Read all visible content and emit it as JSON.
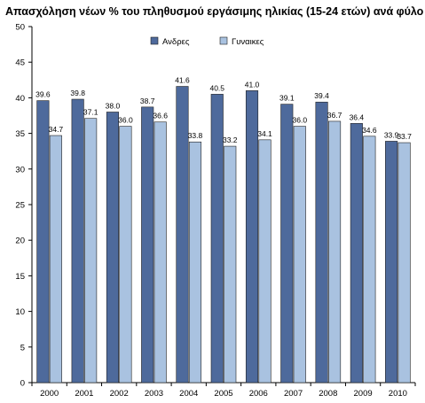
{
  "chart_data": {
    "type": "bar",
    "title": "Απασχόληση νέων % του πληθυσμού εργάσιμης ηλικίας (15-24 ετών) ανά φύλο",
    "categories": [
      "2000",
      "2001",
      "2002",
      "2003",
      "2004",
      "2005",
      "2006",
      "2007",
      "2008",
      "2009",
      "2010"
    ],
    "series": [
      {
        "name": "Ανδρες",
        "color": "#4e6a9c",
        "values": [
          39.6,
          39.8,
          38.0,
          38.7,
          41.6,
          40.5,
          41.0,
          39.1,
          39.4,
          36.4,
          33.9
        ]
      },
      {
        "name": "Γυναικες",
        "color": "#a9c2e0",
        "values": [
          34.7,
          37.1,
          36.0,
          36.6,
          33.8,
          33.2,
          34.1,
          36.0,
          36.7,
          34.6,
          33.7
        ]
      }
    ],
    "ylim": [
      0,
      50
    ],
    "yticks": [
      "0",
      "5",
      "10",
      "15",
      "20",
      "25",
      "30",
      "35",
      "40",
      "45",
      "50"
    ],
    "grid": false,
    "legend_position": "top-center"
  }
}
